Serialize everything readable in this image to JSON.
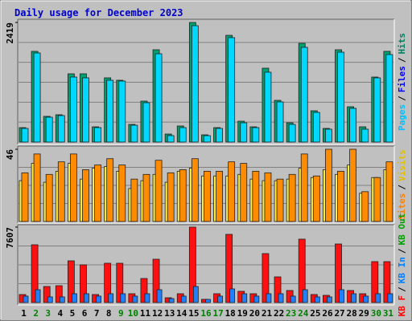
{
  "legend_separator": "/",
  "chart_data": [
    {
      "type": "bar",
      "title": "Daily usage for December 2023",
      "ylim": [
        0,
        2419
      ],
      "yticks": [
        2419
      ],
      "grid_divisions": 6,
      "legend": [
        {
          "name": "Pages",
          "color": "#00c0ff"
        },
        {
          "name": "Files",
          "color": "#0000ff"
        },
        {
          "name": "Hits",
          "color": "#008060"
        }
      ],
      "series": [
        {
          "legend": 2,
          "color": "#00a070",
          "values": [
            292,
            1835,
            520,
            552,
            1380,
            1380,
            308,
            1299,
            1250,
            357,
            828,
            1867,
            162,
            325,
            2419,
            146,
            292,
            2159,
            422,
            308,
            1494,
            844,
            390,
            1997,
            633,
            276,
            1867,
            714,
            308,
            1315,
            1835
          ]
        },
        {
          "legend": 0,
          "color": "#00d8ff",
          "values": [
            276,
            1802,
            503,
            536,
            1315,
            1299,
            292,
            1250,
            1234,
            341,
            796,
            1786,
            130,
            292,
            2354,
            130,
            276,
            2112,
            390,
            292,
            1413,
            812,
            357,
            1916,
            600,
            260,
            1818,
            682,
            260,
            1299,
            1770
          ]
        }
      ]
    },
    {
      "type": "bar",
      "ylim": [
        0,
        46
      ],
      "yticks": [
        46
      ],
      "grid_divisions": 4,
      "legend": [
        {
          "name": "Sites",
          "color": "#ff8000"
        },
        {
          "name": "Visits",
          "color": "#e0c000"
        }
      ],
      "series": [
        {
          "legend": 1,
          "color": "#ffee40",
          "values": [
            26,
            37,
            25,
            32,
            37,
            27,
            34,
            35,
            32,
            21,
            26,
            30,
            25,
            32,
            34,
            29,
            29,
            29,
            30,
            27,
            26,
            26,
            27,
            34,
            28,
            33,
            30,
            36,
            18,
            28,
            33
          ]
        },
        {
          "legend": 0,
          "color": "#ff8c00",
          "values": [
            31,
            43,
            30,
            38,
            43,
            33,
            36,
            40,
            36,
            27,
            30,
            39,
            31,
            33,
            40,
            32,
            32,
            38,
            37,
            32,
            31,
            27,
            30,
            43,
            29,
            46,
            32,
            46,
            19,
            28,
            38
          ]
        }
      ]
    },
    {
      "type": "bar",
      "ylim": [
        0,
        7607
      ],
      "yticks": [
        7607
      ],
      "grid_divisions": 4,
      "legend": [
        {
          "name": "KB F",
          "color": "#ff0000"
        },
        {
          "name": "KB In",
          "color": "#0080ff"
        },
        {
          "name": "KB Out",
          "color": "#00a000"
        }
      ],
      "series": [
        {
          "legend": 0,
          "color": "#ff1010",
          "values": [
            809,
            5826,
            1618,
            1699,
            4208,
            3803,
            809,
            3965,
            3965,
            890,
            2427,
            4370,
            485,
            890,
            7607,
            324,
            890,
            6878,
            1133,
            890,
            4936,
            2589,
            1214,
            6393,
            809,
            728,
            5907,
            1214,
            890,
            4127,
            4127
          ]
        },
        {
          "legend": 1,
          "color": "#2080ff",
          "values": [
            650,
            1295,
            570,
            570,
            890,
            890,
            650,
            890,
            890,
            650,
            890,
            1295,
            400,
            650,
            1618,
            320,
            650,
            1376,
            890,
            650,
            890,
            890,
            650,
            1295,
            570,
            570,
            1295,
            890,
            650,
            890,
            890
          ]
        }
      ],
      "categories": [
        "1",
        "2",
        "3",
        "4",
        "5",
        "6",
        "7",
        "8",
        "9",
        "10",
        "11",
        "12",
        "13",
        "14",
        "15",
        "16",
        "17",
        "18",
        "19",
        "20",
        "21",
        "22",
        "23",
        "24",
        "25",
        "26",
        "27",
        "28",
        "29",
        "30",
        "31"
      ],
      "weekend": [
        1,
        2,
        8,
        9,
        15,
        16,
        22,
        23,
        29,
        30
      ],
      "weekend_color": "#008000"
    }
  ]
}
